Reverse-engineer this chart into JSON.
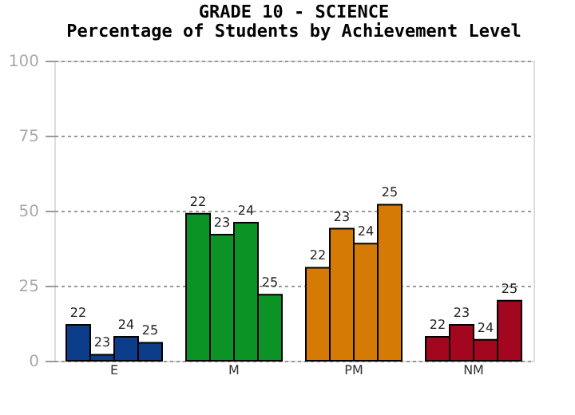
{
  "chart_data": {
    "type": "bar",
    "title": "GRADE 10 - SCIENCE",
    "subtitle": "Percentage of Students by Achievement Level",
    "categories": [
      "E",
      "M",
      "PM",
      "NM"
    ],
    "series": [
      {
        "name": "22",
        "colors": [
          "#0b3d8a",
          "#0b9325",
          "#d67a06",
          "#a3061f"
        ],
        "values": [
          12,
          49,
          31,
          8
        ]
      },
      {
        "name": "23",
        "colors": [
          "#0b3d8a",
          "#0b9325",
          "#d67a06",
          "#a3061f"
        ],
        "values": [
          2,
          42,
          44,
          12
        ]
      },
      {
        "name": "24",
        "colors": [
          "#0b3d8a",
          "#0b9325",
          "#d67a06",
          "#a3061f"
        ],
        "values": [
          8,
          46,
          39,
          7
        ]
      },
      {
        "name": "25",
        "colors": [
          "#0b3d8a",
          "#0b9325",
          "#d67a06",
          "#a3061f"
        ],
        "values": [
          6,
          22,
          52,
          20
        ]
      }
    ],
    "ylim": [
      0,
      100
    ],
    "yticks": [
      0,
      25,
      50,
      75,
      100
    ],
    "grid": "y"
  }
}
